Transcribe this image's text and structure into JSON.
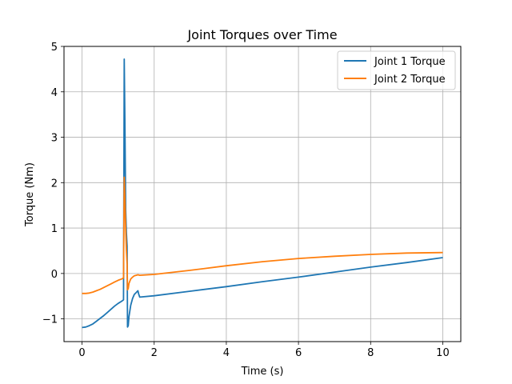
{
  "chart_data": {
    "type": "line",
    "title": "Joint Torques over Time",
    "xlabel": "Time (s)",
    "ylabel": "Torque (Nm)",
    "xlim": [
      -0.5,
      10.5
    ],
    "ylim": [
      -1.5,
      5.0
    ],
    "xticks": [
      0,
      2,
      4,
      6,
      8,
      10
    ],
    "xtick_labels": [
      "0",
      "2",
      "4",
      "6",
      "8",
      "10"
    ],
    "yticks": [
      -1,
      0,
      1,
      2,
      3,
      4,
      5
    ],
    "ytick_labels": [
      "−1",
      "0",
      "1",
      "2",
      "3",
      "4",
      "5"
    ],
    "grid": true,
    "legend_position": "top-right",
    "series": [
      {
        "name": "Joint 1 Torque",
        "color": "#1f77b4",
        "x": [
          0.0,
          0.1,
          0.2,
          0.3,
          0.4,
          0.5,
          0.6,
          0.7,
          0.8,
          0.9,
          1.0,
          1.1,
          1.15,
          1.17,
          1.19,
          1.21,
          1.23,
          1.25,
          1.26,
          1.28,
          1.3,
          1.35,
          1.4,
          1.45,
          1.5,
          1.55,
          1.57,
          1.6,
          2,
          3,
          4,
          5,
          6,
          7,
          8,
          9,
          10
        ],
        "y": [
          -1.19,
          -1.18,
          -1.15,
          -1.11,
          -1.05,
          -0.99,
          -0.93,
          -0.86,
          -0.79,
          -0.72,
          -0.66,
          -0.61,
          -0.58,
          4.72,
          3.2,
          1.4,
          0.9,
          0.6,
          -1.18,
          -1.15,
          -0.95,
          -0.7,
          -0.55,
          -0.46,
          -0.42,
          -0.38,
          -0.45,
          -0.52,
          -0.49,
          -0.39,
          -0.29,
          -0.18,
          -0.08,
          0.03,
          0.14,
          0.24,
          0.35
        ]
      },
      {
        "name": "Joint 2 Torque",
        "color": "#ff7f0e",
        "x": [
          0.0,
          0.1,
          0.2,
          0.3,
          0.4,
          0.5,
          0.6,
          0.7,
          0.8,
          0.9,
          1.0,
          1.1,
          1.15,
          1.17,
          1.19,
          1.21,
          1.23,
          1.25,
          1.26,
          1.28,
          1.3,
          1.35,
          1.4,
          1.45,
          1.5,
          1.55,
          1.6,
          2,
          3,
          4,
          5,
          6,
          7,
          8,
          9,
          10
        ],
        "y": [
          -0.44,
          -0.44,
          -0.43,
          -0.41,
          -0.38,
          -0.35,
          -0.31,
          -0.27,
          -0.23,
          -0.19,
          -0.15,
          -0.12,
          -0.1,
          2.12,
          1.6,
          1.0,
          0.5,
          0.2,
          -0.36,
          -0.33,
          -0.22,
          -0.12,
          -0.08,
          -0.05,
          -0.04,
          -0.03,
          -0.04,
          -0.02,
          0.07,
          0.17,
          0.26,
          0.33,
          0.38,
          0.42,
          0.45,
          0.46
        ]
      }
    ]
  }
}
